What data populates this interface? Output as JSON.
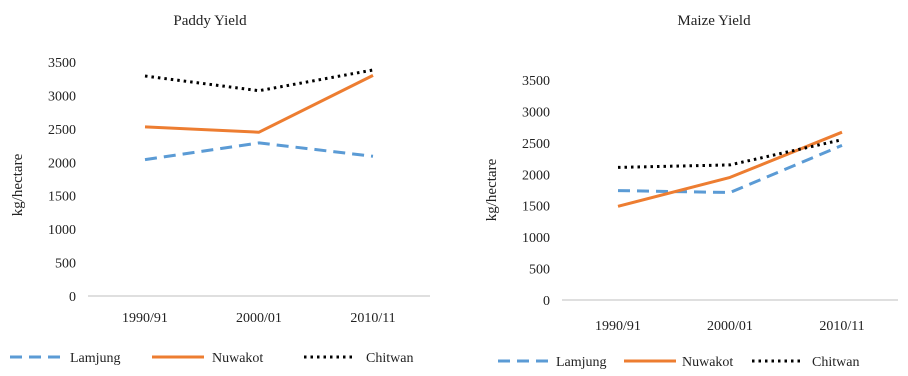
{
  "chart_data": [
    {
      "type": "line",
      "title": "Paddy Yield",
      "xlabel": "",
      "ylabel": "kg/hectare",
      "categories": [
        "1990/91",
        "2000/01",
        "2010/11"
      ],
      "ylim": [
        0,
        3500
      ],
      "yticks": [
        0,
        500,
        1000,
        1500,
        2000,
        2500,
        3000,
        3500
      ],
      "grid": false,
      "legend_position": "bottom",
      "series": [
        {
          "name": "Lamjung",
          "values": [
            2040,
            2290,
            2090
          ],
          "color": "#5B9BD5",
          "style": "dashed"
        },
        {
          "name": "Nuwakot",
          "values": [
            2530,
            2450,
            3300
          ],
          "color": "#ED7D31",
          "style": "solid"
        },
        {
          "name": "Chitwan",
          "values": [
            3290,
            3070,
            3380
          ],
          "color": "#000000",
          "style": "dotted"
        }
      ]
    },
    {
      "type": "line",
      "title": "Maize Yield",
      "xlabel": "",
      "ylabel": "kg/hectare",
      "categories": [
        "1990/91",
        "2000/01",
        "2010/11"
      ],
      "ylim": [
        0,
        3500
      ],
      "yticks": [
        0,
        500,
        1000,
        1500,
        2000,
        2500,
        3000,
        3500
      ],
      "grid": false,
      "legend_position": "bottom",
      "series": [
        {
          "name": "Lamjung",
          "values": [
            1740,
            1710,
            2460
          ],
          "color": "#5B9BD5",
          "style": "dashed"
        },
        {
          "name": "Nuwakot",
          "values": [
            1490,
            1950,
            2670
          ],
          "color": "#ED7D31",
          "style": "solid"
        },
        {
          "name": "Chitwan",
          "values": [
            2110,
            2150,
            2550
          ],
          "color": "#000000",
          "style": "dotted"
        }
      ]
    }
  ]
}
